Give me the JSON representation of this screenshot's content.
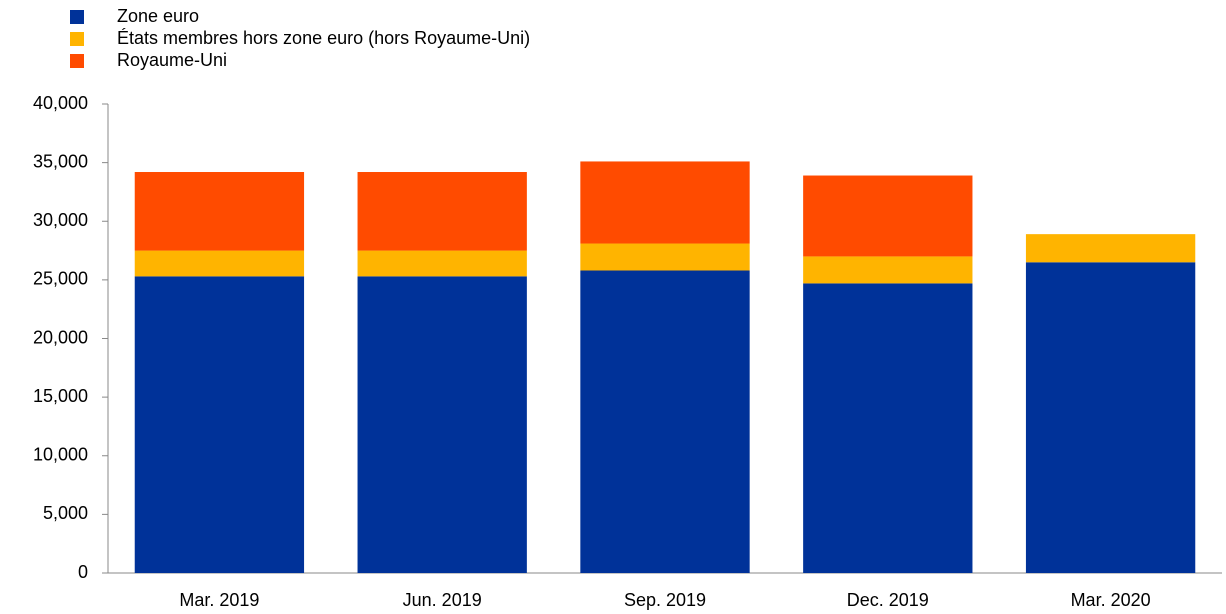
{
  "chart_data": {
    "type": "stacked_bar",
    "categories": [
      "Mar. 2019",
      "Jun. 2019",
      "Sep. 2019",
      "Dec. 2019",
      "Mar. 2020"
    ],
    "series": [
      {
        "name": "Zone euro",
        "color": "#003299",
        "values": [
          25300,
          25300,
          25800,
          24700,
          26500
        ]
      },
      {
        "name": "États membres hors zone euro (hors Royaume-Uni)",
        "color": "#ffb400",
        "values": [
          2200,
          2200,
          2300,
          2300,
          2400
        ]
      },
      {
        "name": "Royaume-Uni",
        "color": "#ff4b00",
        "values": [
          6700,
          6700,
          7000,
          6900,
          0
        ]
      }
    ],
    "ylim": [
      0,
      40000
    ],
    "yticks": [
      0,
      {
        "value": 5000,
        "label": "5,000"
      },
      {
        "value": 10000,
        "label": "10,000"
      },
      {
        "value": 15000,
        "label": "15,000"
      },
      {
        "value": 20000,
        "label": "20,000"
      },
      {
        "value": 25000,
        "label": "25,000"
      },
      {
        "value": 30000,
        "label": "30,000"
      },
      {
        "value": 35000,
        "label": "35,000"
      },
      {
        "value": 40000,
        "label": "40,000"
      }
    ]
  }
}
